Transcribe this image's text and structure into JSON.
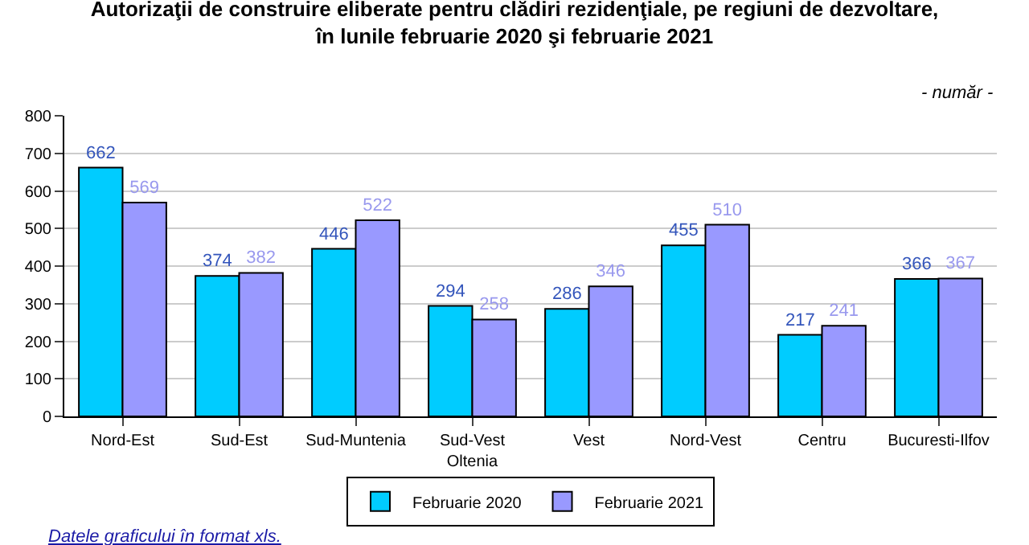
{
  "chart_data": {
    "type": "bar",
    "title": "Autorizaţii de construire eliberate pentru clădiri rezidenţiale, pe regiuni de dezvoltare,\nîn lunile februarie 2020 şi februarie 2021",
    "annotations": [
      "- număr -",
      "Datele graficului în format xls."
    ],
    "categories": [
      "Nord-Est",
      "Sud-Est",
      "Sud-Muntenia",
      "Sud-Vest\nOltenia",
      "Vest",
      "Nord-Vest",
      "Centru",
      "Bucuresti-Ilfov"
    ],
    "series": [
      {
        "name": "Februarie 2020",
        "color": "#00ccff",
        "values": [
          662,
          374,
          446,
          294,
          286,
          455,
          217,
          366
        ]
      },
      {
        "name": "Februarie 2021",
        "color": "#9999ff",
        "values": [
          569,
          382,
          522,
          258,
          346,
          510,
          241,
          367
        ]
      }
    ],
    "ylim": [
      0,
      800
    ],
    "yticks": [
      0,
      100,
      200,
      300,
      400,
      500,
      600,
      700,
      800
    ],
    "grid": "y",
    "legend": "bottom",
    "data_labels": true
  }
}
